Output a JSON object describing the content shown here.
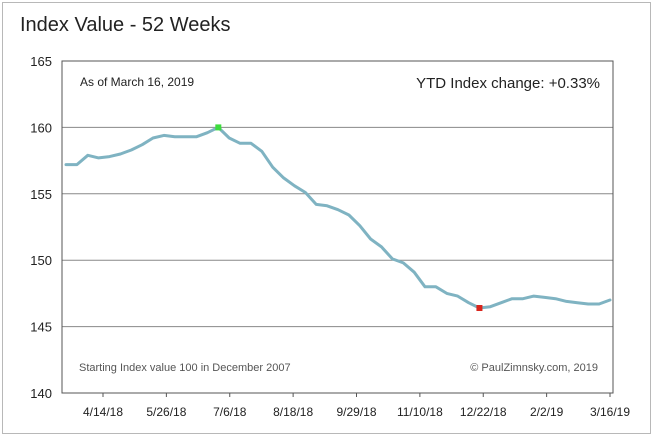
{
  "chart_data": {
    "type": "line",
    "title": "Index Value - 52 Weeks",
    "as_of": "As of March 16, 2019",
    "ytd_note": "YTD Index change: +0.33%",
    "footnote_left": "Starting Index value 100 in December 2007",
    "footnote_right": "© PaulZimnsky.com, 2019",
    "xlabel": "",
    "ylabel": "",
    "ylim": [
      140,
      165
    ],
    "yticks": [
      "165",
      "160",
      "155",
      "150",
      "145",
      "140"
    ],
    "x_tick_labels": [
      "4/14/18",
      "5/26/18",
      "7/6/18",
      "8/18/18",
      "9/29/18",
      "11/10/18",
      "12/22/18",
      "2/2/19",
      "3/16/19"
    ],
    "grid": true,
    "line_color": "#7fb3c2",
    "high_marker_color": "#3ddc3d",
    "low_marker_color": "#d9251c",
    "high": {
      "index": 14,
      "value": 160.0
    },
    "low": {
      "index": 38,
      "value": 146.4
    },
    "series": [
      {
        "values": [
          157.2,
          157.2,
          157.9,
          157.7,
          157.8,
          158.0,
          158.3,
          158.7,
          159.2,
          159.4,
          159.3,
          159.3,
          159.3,
          159.6,
          160.0,
          159.2,
          158.8,
          158.8,
          158.2,
          157.0,
          156.2,
          155.6,
          155.1,
          154.2,
          154.1,
          153.8,
          153.4,
          152.6,
          151.6,
          151.0,
          150.1,
          149.8,
          149.1,
          148.0,
          148.0,
          147.5,
          147.3,
          146.8,
          146.4,
          146.5,
          146.8,
          147.1,
          147.1,
          147.3,
          147.2,
          147.1,
          146.9,
          146.8,
          146.7,
          146.7,
          147.0
        ]
      }
    ]
  }
}
